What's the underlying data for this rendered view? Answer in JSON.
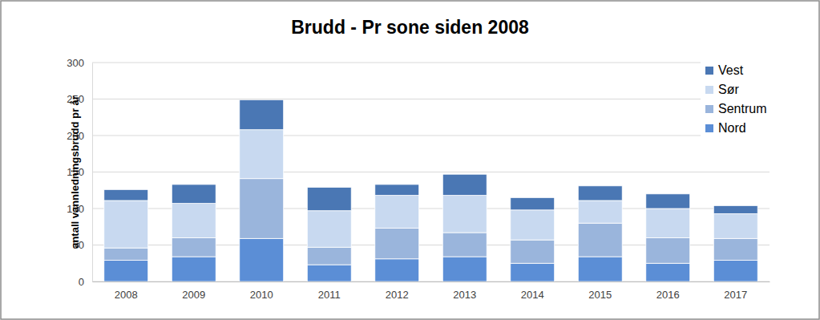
{
  "chart_data": {
    "type": "bar",
    "stacked": true,
    "title": "Brudd - Pr sone siden 2008",
    "y_label": "antall vannledningsbrudd pr år",
    "categories": [
      "2008",
      "2009",
      "2010",
      "2011",
      "2012",
      "2013",
      "2014",
      "2015",
      "2016",
      "2017"
    ],
    "series": [
      {
        "name": "Nord",
        "color": "#5b8ed6",
        "values": [
          29,
          34,
          59,
          23,
          31,
          34,
          25,
          34,
          25,
          29
        ]
      },
      {
        "name": "Sentrum",
        "color": "#9ab5dc",
        "values": [
          17,
          26,
          82,
          24,
          42,
          33,
          32,
          46,
          35,
          30
        ]
      },
      {
        "name": "Sør",
        "color": "#c8d9f0",
        "values": [
          65,
          47,
          67,
          50,
          45,
          51,
          41,
          31,
          40,
          34
        ]
      },
      {
        "name": "Vest",
        "color": "#4a77b4",
        "values": [
          15,
          26,
          41,
          32,
          15,
          29,
          17,
          20,
          20,
          11
        ]
      }
    ],
    "ylim": [
      0,
      300
    ],
    "yticks": [
      0,
      50,
      100,
      150,
      200,
      250,
      300
    ],
    "grid": true,
    "legend": "top-right"
  }
}
